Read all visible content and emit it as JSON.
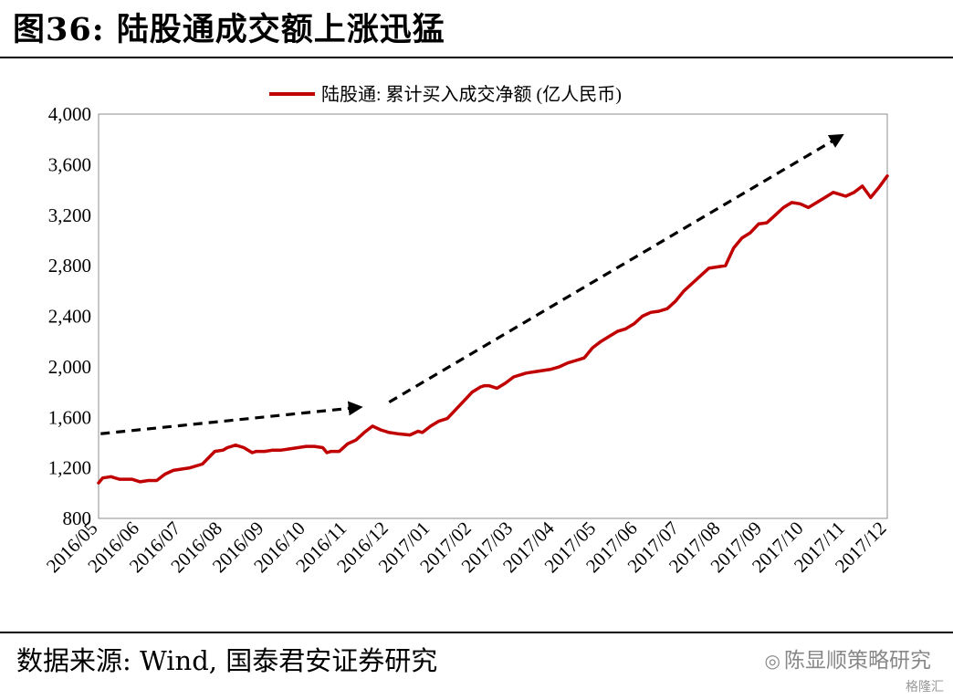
{
  "header": {
    "title": "图36: 陆股通成交额上涨迅猛"
  },
  "footer": {
    "source": "数据来源: Wind, 国泰君安证券研究",
    "watermark": "陈显顺策略研究",
    "watermark_sub": "格隆汇"
  },
  "chart_data": {
    "type": "line",
    "title": "",
    "xlabel": "",
    "ylabel": "",
    "ylim": [
      800,
      4000
    ],
    "yticks": [
      800,
      1200,
      1600,
      2000,
      2400,
      2800,
      3200,
      3600,
      4000
    ],
    "ytick_labels": [
      "800",
      "1,200",
      "1,600",
      "2,000",
      "2,400",
      "2,800",
      "3,200",
      "3,600",
      "4,000"
    ],
    "categories": [
      "2016/05",
      "2016/06",
      "2016/07",
      "2016/08",
      "2016/09",
      "2016/10",
      "2016/11",
      "2016/12",
      "2017/01",
      "2017/02",
      "2017/03",
      "2017/04",
      "2017/05",
      "2017/06",
      "2017/07",
      "2017/08",
      "2017/09",
      "2017/10",
      "2017/11",
      "2017/12"
    ],
    "grid": true,
    "legend_position": "top-center",
    "series": [
      {
        "name": "陆股通: 累计买入成交净额 (亿人民币)",
        "color": "#C00000",
        "x": [
          0,
          0.1,
          0.3,
          0.5,
          0.8,
          1.0,
          1.2,
          1.4,
          1.6,
          1.8,
          2.0,
          2.2,
          2.5,
          2.8,
          3.0,
          3.1,
          3.3,
          3.5,
          3.6,
          3.7,
          3.8,
          4.0,
          4.2,
          4.4,
          4.6,
          4.8,
          5.0,
          5.2,
          5.4,
          5.5,
          5.6,
          5.8,
          6.0,
          6.2,
          6.4,
          6.6,
          6.8,
          6.9,
          7.0,
          7.2,
          7.5,
          7.7,
          7.8,
          8.0,
          8.2,
          8.4,
          8.6,
          8.8,
          9.0,
          9.2,
          9.3,
          9.4,
          9.6,
          9.8,
          10.0,
          10.2,
          10.3,
          10.5,
          10.7,
          10.9,
          11.1,
          11.3,
          11.5,
          11.7,
          11.9,
          12.1,
          12.3,
          12.5,
          12.7,
          12.9,
          13.1,
          13.3,
          13.5,
          13.7,
          13.9,
          14.1,
          14.3,
          14.5,
          14.7,
          14.9,
          15.1,
          15.3,
          15.5,
          15.7,
          15.9,
          16.1,
          16.3,
          16.5,
          16.7,
          16.9,
          17.1,
          17.3,
          17.5,
          17.7,
          17.9,
          18.0,
          18.2,
          18.4,
          18.6,
          18.8,
          19.0
        ],
        "values": [
          1080,
          1120,
          1130,
          1110,
          1110,
          1090,
          1100,
          1100,
          1150,
          1180,
          1190,
          1200,
          1230,
          1330,
          1340,
          1360,
          1380,
          1360,
          1340,
          1320,
          1330,
          1330,
          1340,
          1340,
          1350,
          1360,
          1370,
          1370,
          1360,
          1320,
          1330,
          1330,
          1390,
          1420,
          1480,
          1530,
          1500,
          1490,
          1480,
          1470,
          1460,
          1490,
          1480,
          1530,
          1570,
          1590,
          1660,
          1730,
          1800,
          1840,
          1850,
          1850,
          1830,
          1870,
          1920,
          1940,
          1950,
          1960,
          1970,
          1980,
          2000,
          2030,
          2050,
          2070,
          2150,
          2200,
          2240,
          2280,
          2300,
          2340,
          2400,
          2430,
          2440,
          2460,
          2520,
          2600,
          2660,
          2720,
          2780,
          2790,
          2800,
          2940,
          3020,
          3060,
          3130,
          3140,
          3200,
          3260,
          3300,
          3290,
          3260,
          3300,
          3340,
          3380,
          3360,
          3350,
          3380,
          3430,
          3340,
          3420,
          3510
        ]
      }
    ],
    "annotations": [
      {
        "type": "arrow",
        "style": "dashed",
        "from": [
          0.05,
          1470
        ],
        "to": [
          6.3,
          1680
        ]
      },
      {
        "type": "arrow",
        "style": "dashed",
        "from": [
          7.0,
          1720
        ],
        "to": [
          17.9,
          3830
        ]
      }
    ]
  }
}
